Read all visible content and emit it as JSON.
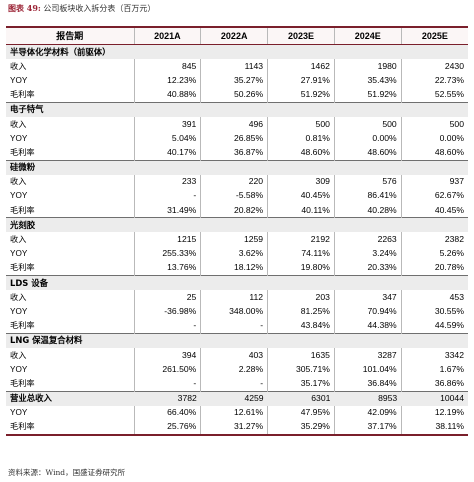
{
  "caption": {
    "label": "图表 49:",
    "text": "公司板块收入拆分表（百万元）"
  },
  "header": {
    "first": "报告期",
    "years": [
      "2021A",
      "2022A",
      "2023E",
      "2024E",
      "2025E"
    ]
  },
  "sections": [
    {
      "title": "半导体化学材料（前驱体）",
      "rows": [
        {
          "label": "收入",
          "values": [
            "845",
            "1143",
            "1462",
            "1980",
            "2430"
          ]
        },
        {
          "label": "YOY",
          "values": [
            "12.23%",
            "35.27%",
            "27.91%",
            "35.43%",
            "22.73%"
          ]
        },
        {
          "label": "毛利率",
          "values": [
            "40.88%",
            "50.26%",
            "51.92%",
            "51.92%",
            "52.55%"
          ]
        }
      ]
    },
    {
      "title": "电子特气",
      "rows": [
        {
          "label": "收入",
          "values": [
            "391",
            "496",
            "500",
            "500",
            "500"
          ]
        },
        {
          "label": "YOY",
          "values": [
            "5.04%",
            "26.85%",
            "0.81%",
            "0.00%",
            "0.00%"
          ]
        },
        {
          "label": "毛利率",
          "values": [
            "40.17%",
            "36.87%",
            "48.60%",
            "48.60%",
            "48.60%"
          ]
        }
      ]
    },
    {
      "title": "硅微粉",
      "rows": [
        {
          "label": "收入",
          "values": [
            "233",
            "220",
            "309",
            "576",
            "937"
          ]
        },
        {
          "label": "YOY",
          "values": [
            "-",
            "-5.58%",
            "40.45%",
            "86.41%",
            "62.67%"
          ]
        },
        {
          "label": "毛利率",
          "values": [
            "31.49%",
            "20.82%",
            "40.11%",
            "40.28%",
            "40.45%"
          ]
        }
      ]
    },
    {
      "title": "光刻胶",
      "rows": [
        {
          "label": "收入",
          "values": [
            "1215",
            "1259",
            "2192",
            "2263",
            "2382"
          ]
        },
        {
          "label": "YOY",
          "values": [
            "255.33%",
            "3.62%",
            "74.11%",
            "3.24%",
            "5.26%"
          ]
        },
        {
          "label": "毛利率",
          "values": [
            "13.76%",
            "18.12%",
            "19.80%",
            "20.33%",
            "20.78%"
          ]
        }
      ]
    },
    {
      "title": "LDS 设备",
      "rows": [
        {
          "label": "收入",
          "values": [
            "25",
            "112",
            "203",
            "347",
            "453"
          ]
        },
        {
          "label": "YOY",
          "values": [
            "-36.98%",
            "348.00%",
            "81.25%",
            "70.94%",
            "30.55%"
          ]
        },
        {
          "label": "毛利率",
          "values": [
            "-",
            "-",
            "43.84%",
            "44.38%",
            "44.59%"
          ]
        }
      ]
    },
    {
      "title": "LNG 保温复合材料",
      "rows": [
        {
          "label": "收入",
          "values": [
            "394",
            "403",
            "1635",
            "3287",
            "3342"
          ]
        },
        {
          "label": "YOY",
          "values": [
            "261.50%",
            "2.28%",
            "305.71%",
            "101.04%",
            "1.67%"
          ]
        },
        {
          "label": "毛利率",
          "values": [
            "-",
            "-",
            "35.17%",
            "36.84%",
            "36.86%"
          ]
        }
      ]
    }
  ],
  "total": {
    "title": "营业总收入",
    "rows": [
      {
        "label": "YOY",
        "values": [
          "66.40%",
          "12.61%",
          "47.95%",
          "42.09%",
          "12.19%"
        ]
      },
      {
        "label": "毛利率",
        "values": [
          "25.76%",
          "31.27%",
          "35.29%",
          "37.17%",
          "38.11%"
        ]
      }
    ],
    "values": [
      "3782",
      "4259",
      "6301",
      "8953",
      "10044"
    ]
  },
  "source": "资料来源：Wind，国盛证券研究所"
}
